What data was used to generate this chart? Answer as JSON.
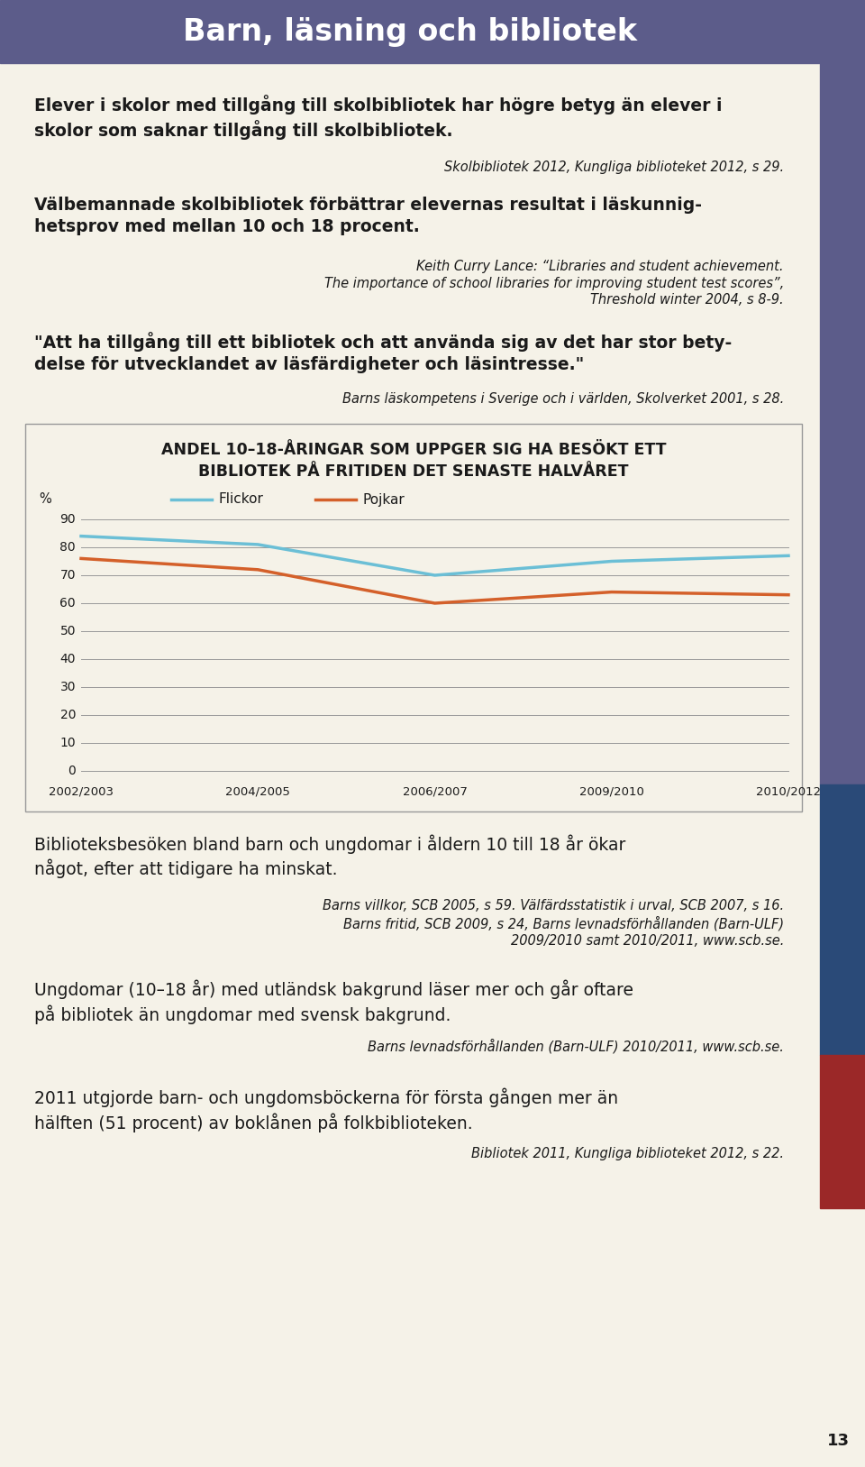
{
  "header_text": "Barn, läsning och bibliotek",
  "header_bg": "#5c5c8a",
  "header_text_color": "#ffffff",
  "page_bg": "#f5f2e8",
  "body_text_color": "#1a1a1a",
  "para1_bold": "Elever i skolor med tillgång till skolbibliotek har högre betyg än elever i\nskolor som saknar tillgång till skolbibliotek.",
  "para1_cite": "Skolbibliotek 2012, Kungliga biblioteket 2012, s 29.",
  "para2_bold": "Välbemannade skolbibliotek förbättrar elevernas resultat i läskunnig-\nhetsprov med mellan 10 och 18 procent.",
  "para2_cite": "Keith Curry Lance: “Libraries and student achievement.\nThe importance of school libraries for improving student test scores”,\nThreshold winter 2004, s 8-9.",
  "para3_bold": "\"Att ha tillgång till ett bibliotek och att använda sig av det har stor bety-\ndelse för utvecklandet av läsfärdigheter och läsintresse.\"",
  "para3_cite": "Barns läskompetens i Sverige och i världen, Skolverket 2001, s 28.",
  "chart_title_line1": "ANDEL 10–18-ÅRINGAR SOM UPPGER SIG HA BESÖKT ETT",
  "chart_title_line2": "BIBLIOTEK PÅ FRITIDEN DET SENASTE HALVÅRET",
  "flickor_color": "#6bbfd6",
  "pojkar_color": "#d4602a",
  "flickor_y": [
    84,
    81,
    70,
    75,
    77
  ],
  "pojkar_y": [
    76,
    72,
    60,
    64,
    63
  ],
  "y_ticks": [
    0,
    10,
    20,
    30,
    40,
    50,
    60,
    70,
    80,
    90
  ],
  "x_labels": [
    "2002/2003",
    "2004/2005",
    "2006/2007",
    "2009/2010",
    "2010/2012"
  ],
  "para4_line1": "Biblioteksbesöken bland barn och ungdomar i åldern 10 till 18 år ökar",
  "para4_line2": "något, efter att tidigare ha minskat.",
  "para4_cite": "Barns villkor, SCB 2005, s 59. Välfärdsstatistik i urval, SCB 2007, s 16.\nBarns fritid, SCB 2009, s 24, Barns levnadsförhållanden (Barn-ULF)\n2009/2010 samt 2010/2011, www.scb.se.",
  "para5_line1": "Ungdomar (10–18 år) med utländsk bakgrund läser mer och går oftare",
  "para5_line2": "på bibliotek än ungdomar med svensk bakgrund.",
  "para5_cite": "Barns levnadsförhållanden (Barn-ULF) 2010/2011, www.scb.se.",
  "para6_line1": "2011 utgjorde barn- och ungdomsböckerna för första gången mer än",
  "para6_line2": "hälften (51 procent) av boklånen på folkbiblioteken.",
  "para6_cite": "Bibliotek 2011, Kungliga biblioteket 2012, s 22.",
  "page_number": "13",
  "sidebar_purple": "#5c5c8a",
  "sidebar_blue": "#2a4a78",
  "sidebar_red": "#9b2828"
}
